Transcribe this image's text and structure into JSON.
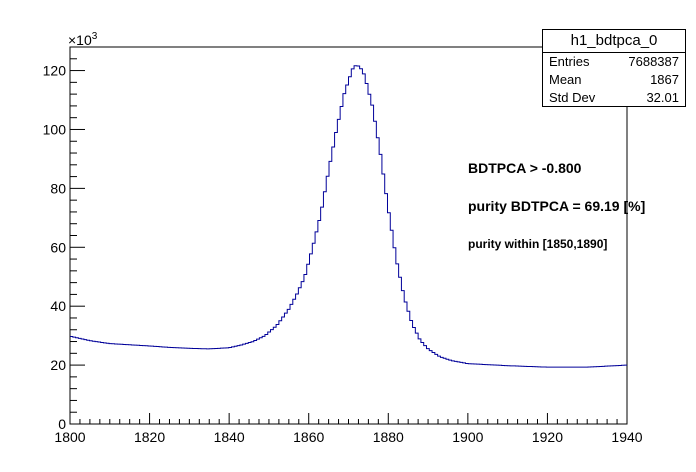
{
  "chart_data": {
    "type": "histogram",
    "title": "",
    "xlabel": "",
    "ylabel": "",
    "xlim": [
      1800,
      1940
    ],
    "ylim": [
      0,
      128000
    ],
    "bin_width": 0.7,
    "y_multiplier_label": "×10",
    "y_multiplier_exp": "3",
    "x_ticks": [
      1800,
      1820,
      1840,
      1860,
      1880,
      1900,
      1920,
      1940
    ],
    "y_ticks": [
      0,
      20,
      40,
      60,
      80,
      100,
      120
    ],
    "curve_points": [
      [
        1800,
        29.8
      ],
      [
        1805,
        28.3
      ],
      [
        1810,
        27.3
      ],
      [
        1815,
        26.9
      ],
      [
        1820,
        26.5
      ],
      [
        1825,
        26.0
      ],
      [
        1830,
        25.7
      ],
      [
        1835,
        25.5
      ],
      [
        1840,
        25.9
      ],
      [
        1843,
        26.8
      ],
      [
        1846,
        28.0
      ],
      [
        1849,
        30.0
      ],
      [
        1852,
        33.5
      ],
      [
        1855,
        39.0
      ],
      [
        1857,
        44.0
      ],
      [
        1859,
        50.0
      ],
      [
        1861,
        60.0
      ],
      [
        1863,
        71.0
      ],
      [
        1865,
        86.0
      ],
      [
        1867,
        100.0
      ],
      [
        1869,
        112.5
      ],
      [
        1871,
        120.5
      ],
      [
        1872,
        122.0
      ],
      [
        1873,
        121.0
      ],
      [
        1874,
        118.5
      ],
      [
        1876,
        108.0
      ],
      [
        1878,
        92.0
      ],
      [
        1880,
        73.0
      ],
      [
        1882,
        56.0
      ],
      [
        1884,
        43.0
      ],
      [
        1886,
        34.0
      ],
      [
        1888,
        28.5
      ],
      [
        1890,
        25.5
      ],
      [
        1893,
        22.8
      ],
      [
        1896,
        21.5
      ],
      [
        1900,
        20.5
      ],
      [
        1910,
        19.8
      ],
      [
        1920,
        19.3
      ],
      [
        1930,
        19.3
      ],
      [
        1940,
        20.0
      ]
    ]
  },
  "stats": {
    "name": "h1_bdtpca_0",
    "rows": [
      {
        "label": "Entries",
        "value": "7688387"
      },
      {
        "label": "Mean",
        "value": "1867"
      },
      {
        "label": "Std Dev",
        "value": "32.01"
      }
    ]
  },
  "annotations": {
    "cut": "BDTPCA > -0.800",
    "purity": "purity BDTPCA = 69.19 [%]",
    "window": "purity within [1850,1890]"
  },
  "colors": {
    "histogram": "#000099",
    "axes": "#000000",
    "background": "#ffffff"
  }
}
